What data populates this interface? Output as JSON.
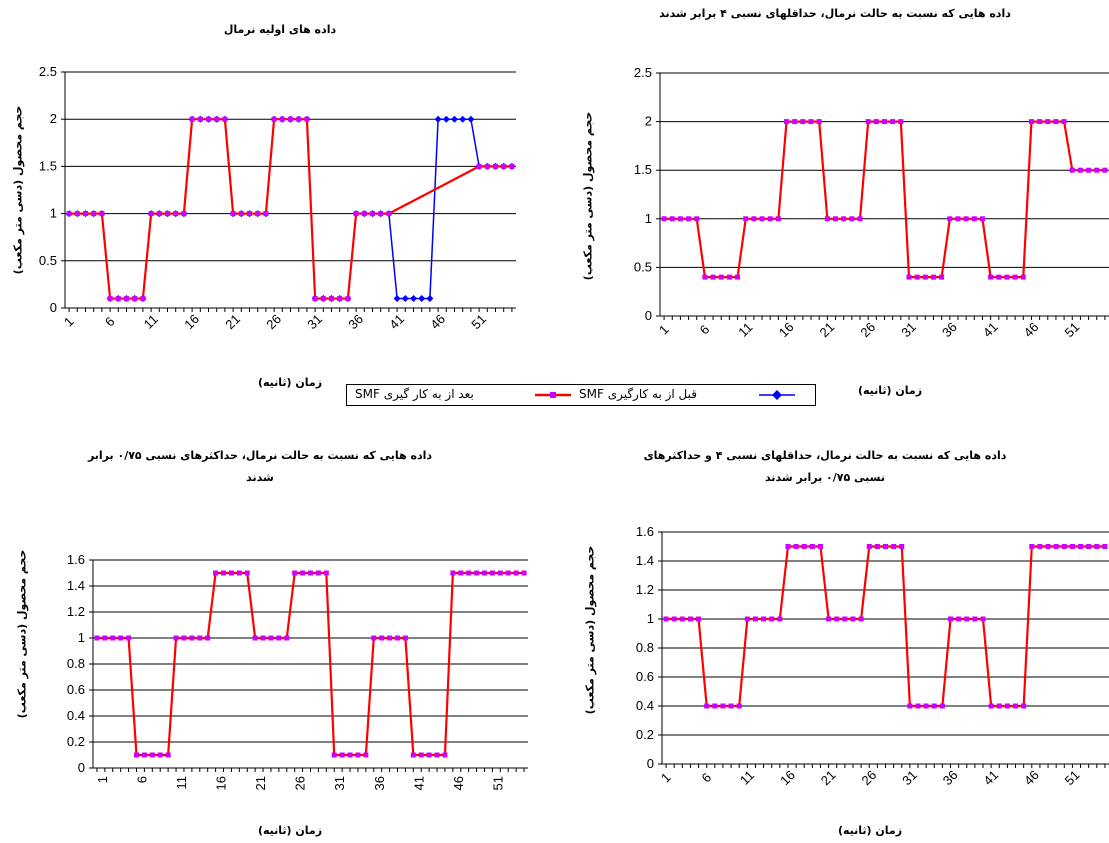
{
  "legend": {
    "after_label": "بعد از به کار گیری SMF",
    "before_label": "قبل از به کارگیری SMF",
    "before_color": "#0000FF",
    "after_color": "#FF0000",
    "marker_color": "#CC00FF"
  },
  "chart_data": [
    {
      "type": "line",
      "title": "داده های اولیه نرمال",
      "ylabel": "حجم محصول (دسی متر مکعب)",
      "xlabel": "زمان (ثانیه)",
      "ylim": [
        0,
        2.5
      ],
      "y_ticks": [
        "0",
        "0.5",
        "1",
        "1.5",
        "2",
        "2.5"
      ],
      "x_tick_labels": [
        "1",
        "6",
        "11",
        "16",
        "21",
        "26",
        "31",
        "36",
        "41",
        "46",
        "51"
      ],
      "x_tick_rotated": true,
      "grid": true,
      "series": [
        {
          "name": "قبل از به کارگیری SMF",
          "color": "#0000FF",
          "segments": [
            [
              1,
              1
            ],
            [
              5,
              1
            ],
            [
              6,
              0.1
            ],
            [
              10,
              0.1
            ],
            [
              11,
              1
            ],
            [
              15,
              1
            ],
            [
              16,
              2
            ],
            [
              20,
              2
            ],
            [
              21,
              1
            ],
            [
              25,
              1
            ],
            [
              26,
              2
            ],
            [
              30,
              2
            ],
            [
              31,
              0.1
            ],
            [
              35,
              0.1
            ],
            [
              36,
              1
            ],
            [
              40,
              1
            ],
            [
              41,
              0.1
            ],
            [
              45,
              0.1
            ],
            [
              46,
              2
            ],
            [
              50,
              2
            ],
            [
              51,
              1.5
            ],
            [
              55,
              1.5
            ]
          ]
        },
        {
          "name": "بعد از به کار گیری SMF",
          "color": "#FF0000",
          "segments": [
            [
              1,
              1
            ],
            [
              5,
              1
            ],
            [
              6,
              0.1
            ],
            [
              10,
              0.1
            ],
            [
              11,
              1
            ],
            [
              15,
              1
            ],
            [
              16,
              2
            ],
            [
              20,
              2
            ],
            [
              21,
              1
            ],
            [
              25,
              1
            ],
            [
              26,
              2
            ],
            [
              30,
              2
            ],
            [
              31,
              0.1
            ],
            [
              35,
              0.1
            ],
            [
              36,
              1
            ],
            [
              40,
              1
            ],
            [
              51,
              1.5
            ],
            [
              55,
              1.5
            ]
          ]
        }
      ]
    },
    {
      "type": "line",
      "title": "داده هایی که نسبت به حالت نرمال، حداقلهای نسبی ۴ برابر شدند",
      "ylabel": "حجم محصول (دسی متر مکعب)",
      "xlabel": "زمان (ثانیه)",
      "ylim": [
        0,
        2.5
      ],
      "y_ticks": [
        "0",
        "0.5",
        "1",
        "1.5",
        "2",
        "2.5"
      ],
      "x_tick_labels": [
        "1",
        "6",
        "11",
        "16",
        "21",
        "26",
        "31",
        "36",
        "41",
        "46",
        "51"
      ],
      "x_tick_rotated": true,
      "grid": true,
      "series": [
        {
          "name": "بعد از به کار گیری SMF",
          "color": "#FF0000",
          "segments": [
            [
              1,
              1
            ],
            [
              5,
              1
            ],
            [
              6,
              0.4
            ],
            [
              10,
              0.4
            ],
            [
              11,
              1
            ],
            [
              15,
              1
            ],
            [
              16,
              2
            ],
            [
              20,
              2
            ],
            [
              21,
              1
            ],
            [
              25,
              1
            ],
            [
              26,
              2
            ],
            [
              30,
              2
            ],
            [
              31,
              0.4
            ],
            [
              35,
              0.4
            ],
            [
              36,
              1
            ],
            [
              40,
              1
            ],
            [
              41,
              0.4
            ],
            [
              45,
              0.4
            ],
            [
              46,
              2
            ],
            [
              50,
              2
            ],
            [
              51,
              1.5
            ],
            [
              55,
              1.5
            ]
          ]
        }
      ]
    },
    {
      "type": "line",
      "title": "داده هایی که نسبت به حالت نرمال، حداکثرهای نسبی ۰/۷۵ برابر",
      "title_line2": "شدند",
      "ylabel": "حجم محصول (دسی متر مکعب)",
      "xlabel": "زمان (ثانیه)",
      "ylim": [
        0,
        1.6
      ],
      "y_ticks": [
        "0",
        "0.2",
        "0.4",
        "0.6",
        "0.8",
        "1",
        "1.2",
        "1.4",
        "1.6"
      ],
      "x_tick_labels": [
        "1",
        "6",
        "11",
        "16",
        "21",
        "26",
        "31",
        "36",
        "41",
        "46",
        "51"
      ],
      "x_tick_rotated": false,
      "grid": true,
      "series": [
        {
          "name": "بعد از به کار گیری SMF",
          "color": "#FF0000",
          "segments": [
            [
              1,
              1
            ],
            [
              5,
              1
            ],
            [
              6,
              0.1
            ],
            [
              10,
              0.1
            ],
            [
              11,
              1
            ],
            [
              15,
              1
            ],
            [
              16,
              1.5
            ],
            [
              20,
              1.5
            ],
            [
              21,
              1
            ],
            [
              25,
              1
            ],
            [
              26,
              1.5
            ],
            [
              30,
              1.5
            ],
            [
              31,
              0.1
            ],
            [
              35,
              0.1
            ],
            [
              36,
              1
            ],
            [
              40,
              1
            ],
            [
              41,
              0.1
            ],
            [
              45,
              0.1
            ],
            [
              46,
              1.5
            ],
            [
              55,
              1.5
            ]
          ]
        }
      ]
    },
    {
      "type": "line",
      "title": "داده هایی که نسبت به حالت نرمال، حداقلهای نسبی ۴ و حداکثرهای",
      "title_line2": "نسبی ۰/۷۵ برابر شدند",
      "ylabel": "حجم محصول (دسی متر مکعب)",
      "xlabel": "زمان (ثانیه)",
      "ylim": [
        0,
        1.6
      ],
      "y_ticks": [
        "0",
        "0.2",
        "0.4",
        "0.6",
        "0.8",
        "1",
        "1.2",
        "1.4",
        "1.6"
      ],
      "x_tick_labels": [
        "1",
        "6",
        "11",
        "16",
        "21",
        "26",
        "31",
        "36",
        "41",
        "46",
        "51"
      ],
      "x_tick_rotated": true,
      "grid": true,
      "series": [
        {
          "name": "بعد از به کار گیری SMF",
          "color": "#FF0000",
          "segments": [
            [
              1,
              1
            ],
            [
              5,
              1
            ],
            [
              6,
              0.4
            ],
            [
              10,
              0.4
            ],
            [
              11,
              1
            ],
            [
              15,
              1
            ],
            [
              16,
              1.5
            ],
            [
              20,
              1.5
            ],
            [
              21,
              1
            ],
            [
              25,
              1
            ],
            [
              26,
              1.5
            ],
            [
              30,
              1.5
            ],
            [
              31,
              0.4
            ],
            [
              35,
              0.4
            ],
            [
              36,
              1
            ],
            [
              40,
              1
            ],
            [
              41,
              0.4
            ],
            [
              45,
              0.4
            ],
            [
              46,
              1.5
            ],
            [
              55,
              1.5
            ]
          ]
        }
      ]
    }
  ]
}
